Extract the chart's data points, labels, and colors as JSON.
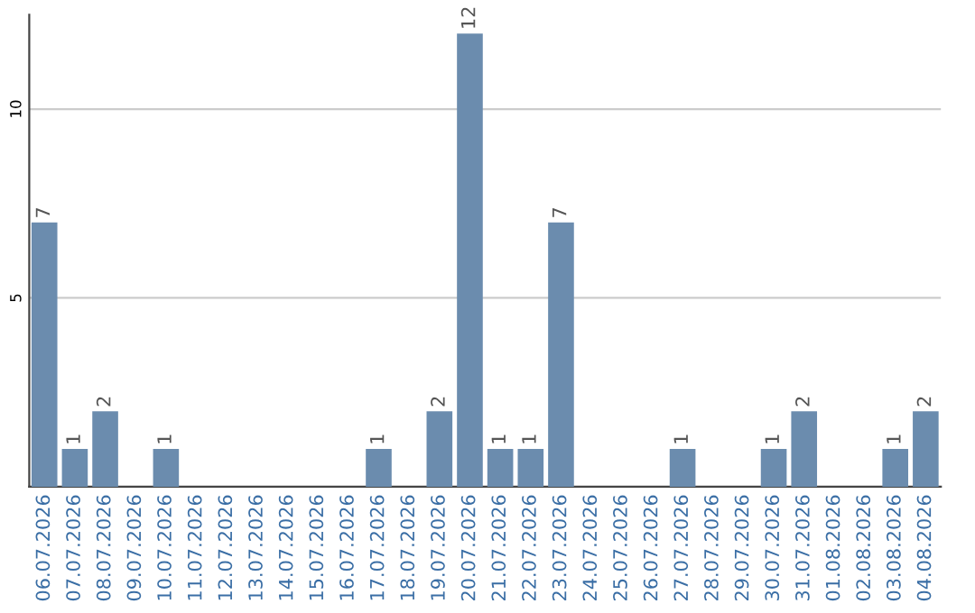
{
  "chart_data": {
    "type": "bar",
    "categories": [
      "06.07.2026",
      "07.07.2026",
      "08.07.2026",
      "09.07.2026",
      "10.07.2026",
      "11.07.2026",
      "12.07.2026",
      "13.07.2026",
      "14.07.2026",
      "15.07.2026",
      "16.07.2026",
      "17.07.2026",
      "18.07.2026",
      "19.07.2026",
      "20.07.2026",
      "21.07.2026",
      "22.07.2026",
      "23.07.2026",
      "24.07.2026",
      "25.07.2026",
      "26.07.2026",
      "27.07.2026",
      "28.07.2026",
      "29.07.2026",
      "30.07.2026",
      "31.07.2026",
      "01.08.2026",
      "02.08.2026",
      "03.08.2026",
      "04.08.2026"
    ],
    "values": [
      7,
      1,
      2,
      0,
      1,
      0,
      0,
      0,
      0,
      0,
      0,
      1,
      0,
      2,
      12,
      1,
      1,
      7,
      0,
      0,
      0,
      1,
      0,
      0,
      1,
      2,
      0,
      0,
      1,
      2
    ],
    "value_labels": [
      "7",
      "1",
      "2",
      null,
      "1",
      null,
      null,
      null,
      null,
      null,
      null,
      "1",
      null,
      "2",
      "12",
      "1",
      "1",
      "7",
      null,
      null,
      null,
      "1",
      null,
      null,
      "1",
      "2",
      null,
      null,
      "1",
      "2"
    ],
    "color": "#6b8cae",
    "ylim": [
      0,
      12.5
    ],
    "yticks": [
      5,
      10
    ],
    "grid": "y"
  }
}
